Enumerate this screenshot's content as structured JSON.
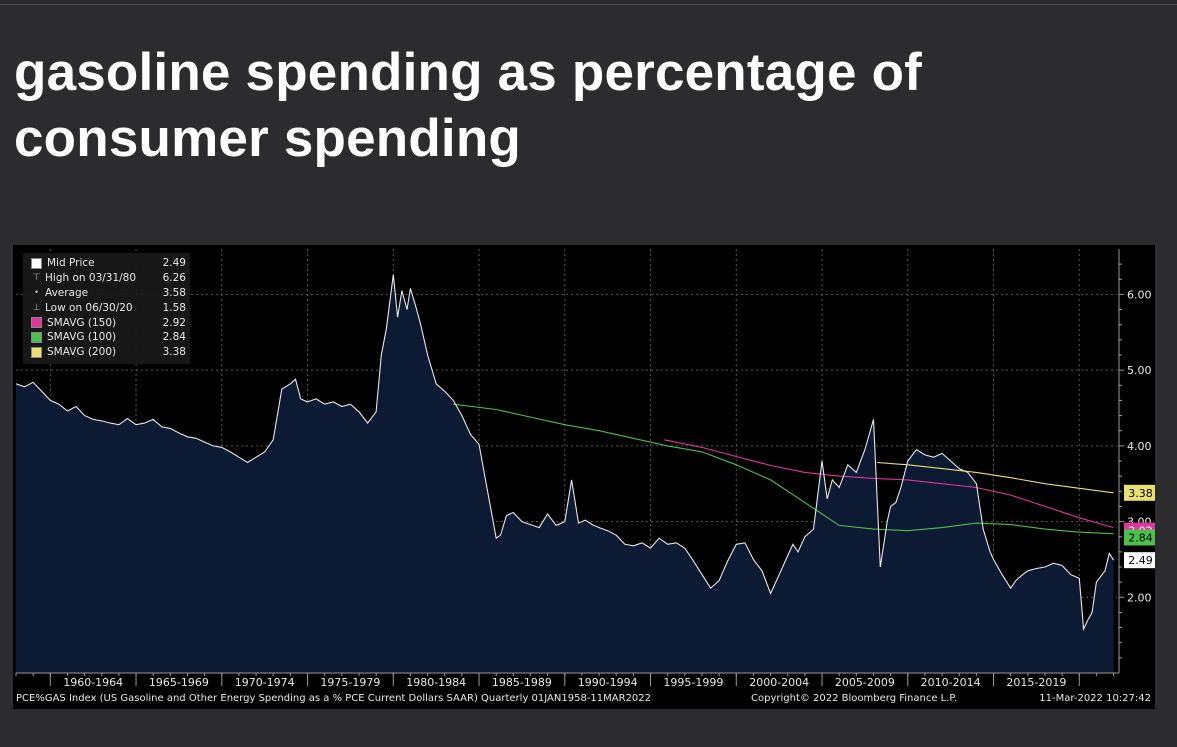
{
  "page": {
    "headline": "gasoline spending as percentage of consumer spending"
  },
  "colors": {
    "page_background": "#2c2c2e",
    "chart_background": "#000000",
    "area_fill": "#0c1a33",
    "price_line": "#e8e8e8",
    "sma150": "#e0359a",
    "sma100": "#4dbf4d",
    "sma200": "#e8e070"
  },
  "legend": [
    {
      "label": "Mid Price",
      "value": "2.49",
      "marker": "white-square"
    },
    {
      "label": "High on 03/31/80",
      "value": "6.26",
      "marker": "high-tick"
    },
    {
      "label": "Average",
      "value": "3.58",
      "marker": "average-dot"
    },
    {
      "label": "Low on 06/30/20",
      "value": "1.58",
      "marker": "low-tick"
    },
    {
      "label": "SMAVG (150)",
      "value": "2.92",
      "marker": "magenta-square"
    },
    {
      "label": "SMAVG (100)",
      "value": "2.84",
      "marker": "green-square"
    },
    {
      "label": "SMAVG (200)",
      "value": "3.38",
      "marker": "yellow-square"
    }
  ],
  "footer": {
    "source": "PCE%GAS Index (US Gasoline and Other Energy Spending as a % PCE Current Dollars SAAR)  Quarterly 01JAN1958-11MAR2022",
    "copyright": "Copyright© 2022 Bloomberg Finance L.P.",
    "timestamp": "11-Mar-2022 10:27:42"
  },
  "chart_data": {
    "type": "line",
    "title": "",
    "xlabel": "",
    "ylabel": "",
    "xlim": [
      1958.0,
      2022.2
    ],
    "ylim": [
      1.0,
      6.6
    ],
    "y_ticks": [
      2.0,
      3.0,
      4.0,
      5.0,
      6.0
    ],
    "y_tick_labels": [
      "2.00",
      "3.00",
      "4.00",
      "5.00",
      "6.00"
    ],
    "x_bands": [
      {
        "label": "1960-1964",
        "start": 1960,
        "end": 1965
      },
      {
        "label": "1965-1969",
        "start": 1965,
        "end": 1970
      },
      {
        "label": "1970-1974",
        "start": 1970,
        "end": 1975
      },
      {
        "label": "1975-1979",
        "start": 1975,
        "end": 1980
      },
      {
        "label": "1980-1984",
        "start": 1980,
        "end": 1985
      },
      {
        "label": "1985-1989",
        "start": 1985,
        "end": 1990
      },
      {
        "label": "1990-1994",
        "start": 1990,
        "end": 1995
      },
      {
        "label": "1995-1999",
        "start": 1995,
        "end": 2000
      },
      {
        "label": "2000-2004",
        "start": 2000,
        "end": 2005
      },
      {
        "label": "2005-2009",
        "start": 2005,
        "end": 2010
      },
      {
        "label": "2010-2014",
        "start": 2010,
        "end": 2015
      },
      {
        "label": "2015-2019",
        "start": 2015,
        "end": 2020
      }
    ],
    "grid": true,
    "last_value_labels": [
      {
        "series": "SMAVG (200)",
        "value": "3.38",
        "y": 3.38,
        "color": "#e8e070"
      },
      {
        "series": "SMAVG (150)",
        "value": "2.92",
        "y": 2.88,
        "color": "#e0359a"
      },
      {
        "series": "SMAVG (100)",
        "value": "2.84",
        "y": 2.79,
        "color": "#4dbf4d"
      },
      {
        "series": "Mid Price",
        "value": "2.49",
        "y": 2.49,
        "color": "#ffffff"
      }
    ],
    "series": [
      {
        "name": "Mid Price",
        "x": [
          1958.0,
          1958.5,
          1959.0,
          1959.5,
          1960.0,
          1960.5,
          1961.0,
          1961.5,
          1962.0,
          1962.5,
          1963.0,
          1963.5,
          1964.0,
          1964.5,
          1965.0,
          1965.5,
          1966.0,
          1966.5,
          1967.0,
          1967.5,
          1968.0,
          1968.5,
          1969.0,
          1969.5,
          1970.0,
          1970.5,
          1971.0,
          1971.5,
          1972.0,
          1972.5,
          1973.0,
          1973.5,
          1974.0,
          1974.3,
          1974.6,
          1975.0,
          1975.5,
          1976.0,
          1976.5,
          1977.0,
          1977.5,
          1978.0,
          1978.5,
          1979.0,
          1979.3,
          1979.6,
          1980.0,
          1980.25,
          1980.5,
          1980.8,
          1981.0,
          1981.3,
          1981.6,
          1982.0,
          1982.5,
          1983.0,
          1983.5,
          1984.0,
          1984.5,
          1985.0,
          1985.5,
          1986.0,
          1986.25,
          1986.6,
          1987.0,
          1987.5,
          1988.0,
          1988.5,
          1989.0,
          1989.5,
          1990.0,
          1990.4,
          1990.8,
          1991.2,
          1991.6,
          1992.0,
          1992.5,
          1993.0,
          1993.5,
          1994.0,
          1994.5,
          1995.0,
          1995.5,
          1996.0,
          1996.5,
          1997.0,
          1997.5,
          1998.0,
          1998.5,
          1999.0,
          1999.5,
          2000.0,
          2000.5,
          2001.0,
          2001.5,
          2002.0,
          2002.5,
          2003.0,
          2003.3,
          2003.6,
          2004.0,
          2004.5,
          2005.0,
          2005.3,
          2005.6,
          2006.0,
          2006.5,
          2007.0,
          2007.5,
          2008.0,
          2008.4,
          2008.8,
          2009.0,
          2009.3,
          2009.6,
          2010.0,
          2010.5,
          2011.0,
          2011.5,
          2012.0,
          2012.5,
          2013.0,
          2013.5,
          2014.0,
          2014.4,
          2014.8,
          2015.0,
          2015.5,
          2016.0,
          2016.3,
          2016.7,
          2017.0,
          2017.5,
          2018.0,
          2018.5,
          2019.0,
          2019.5,
          2020.0,
          2020.25,
          2020.5,
          2020.75,
          2021.0,
          2021.5,
          2021.75,
          2022.0
        ],
        "y": [
          4.82,
          4.78,
          4.84,
          4.72,
          4.6,
          4.55,
          4.46,
          4.52,
          4.4,
          4.35,
          4.33,
          4.3,
          4.28,
          4.36,
          4.28,
          4.3,
          4.35,
          4.25,
          4.23,
          4.17,
          4.12,
          4.1,
          4.05,
          4.0,
          3.98,
          3.92,
          3.85,
          3.78,
          3.85,
          3.92,
          4.08,
          4.75,
          4.82,
          4.88,
          4.62,
          4.58,
          4.62,
          4.55,
          4.58,
          4.52,
          4.55,
          4.45,
          4.3,
          4.45,
          5.2,
          5.55,
          6.26,
          5.7,
          6.05,
          5.8,
          6.08,
          5.85,
          5.6,
          5.2,
          4.82,
          4.72,
          4.6,
          4.4,
          4.15,
          4.02,
          3.4,
          2.78,
          2.82,
          3.08,
          3.12,
          3.0,
          2.96,
          2.92,
          3.1,
          2.95,
          3.0,
          3.55,
          2.98,
          3.02,
          2.96,
          2.92,
          2.88,
          2.82,
          2.7,
          2.68,
          2.72,
          2.65,
          2.78,
          2.7,
          2.72,
          2.65,
          2.48,
          2.3,
          2.12,
          2.22,
          2.48,
          2.7,
          2.72,
          2.5,
          2.35,
          2.05,
          2.3,
          2.55,
          2.7,
          2.6,
          2.8,
          2.9,
          3.8,
          3.3,
          3.55,
          3.45,
          3.75,
          3.65,
          3.95,
          4.35,
          2.4,
          3.0,
          3.2,
          3.25,
          3.45,
          3.8,
          3.95,
          3.88,
          3.85,
          3.9,
          3.8,
          3.7,
          3.65,
          3.5,
          2.9,
          2.6,
          2.5,
          2.3,
          2.12,
          2.22,
          2.3,
          2.35,
          2.38,
          2.4,
          2.45,
          2.42,
          2.3,
          2.25,
          1.58,
          1.7,
          1.8,
          2.2,
          2.35,
          2.58,
          2.49
        ]
      },
      {
        "name": "SMAVG (100)",
        "x": [
          1983.5,
          1986.0,
          1988.0,
          1990.0,
          1992.0,
          1994.0,
          1996.0,
          1998.0,
          2000.0,
          2002.0,
          2004.0,
          2006.0,
          2008.0,
          2010.0,
          2012.0,
          2014.0,
          2016.0,
          2018.0,
          2020.0,
          2022.0
        ],
        "y": [
          4.55,
          4.48,
          4.38,
          4.28,
          4.2,
          4.1,
          4.0,
          3.92,
          3.75,
          3.55,
          3.25,
          2.95,
          2.9,
          2.88,
          2.92,
          2.98,
          2.96,
          2.9,
          2.86,
          2.84
        ]
      },
      {
        "name": "SMAVG (150)",
        "x": [
          1995.8,
          1998.0,
          2000.0,
          2002.0,
          2004.0,
          2006.0,
          2008.0,
          2010.0,
          2012.0,
          2014.0,
          2016.0,
          2018.0,
          2020.0,
          2022.0
        ],
        "y": [
          4.08,
          3.98,
          3.86,
          3.74,
          3.65,
          3.6,
          3.57,
          3.55,
          3.5,
          3.45,
          3.35,
          3.2,
          3.05,
          2.92
        ]
      },
      {
        "name": "SMAVG (200)",
        "x": [
          2008.2,
          2010.0,
          2012.0,
          2014.0,
          2016.0,
          2018.0,
          2020.0,
          2022.0
        ],
        "y": [
          3.78,
          3.75,
          3.7,
          3.65,
          3.58,
          3.5,
          3.44,
          3.38
        ]
      }
    ]
  }
}
